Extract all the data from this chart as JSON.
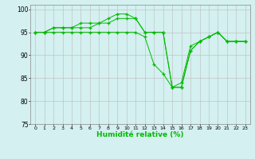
{
  "title": "",
  "xlabel": "Humidité relative (%)",
  "ylabel": "",
  "bg_color": "#d4f0f0",
  "grid_color": "#bbbbbb",
  "line_color": "#00bb00",
  "xlim": [
    -0.5,
    23.5
  ],
  "ylim": [
    75,
    101
  ],
  "yticks": [
    75,
    80,
    85,
    90,
    95,
    100
  ],
  "xticks": [
    0,
    1,
    2,
    3,
    4,
    5,
    6,
    7,
    8,
    9,
    10,
    11,
    12,
    13,
    14,
    15,
    16,
    17,
    18,
    19,
    20,
    21,
    22,
    23
  ],
  "series": [
    {
      "x": [
        0,
        1,
        2,
        3,
        4,
        5,
        6,
        7,
        8,
        9,
        10,
        11,
        12,
        13,
        14,
        15,
        16,
        17,
        18,
        19,
        20,
        21,
        22,
        23
      ],
      "y": [
        95,
        95,
        96,
        96,
        96,
        96,
        96,
        97,
        97,
        98,
        98,
        98,
        95,
        95,
        95,
        83,
        83,
        91,
        93,
        94,
        95,
        93,
        93,
        93
      ]
    },
    {
      "x": [
        0,
        1,
        2,
        3,
        4,
        5,
        6,
        7,
        8,
        9,
        10,
        11,
        12,
        13,
        14,
        15,
        16,
        17,
        18,
        19,
        20,
        21,
        22,
        23
      ],
      "y": [
        95,
        95,
        96,
        96,
        96,
        97,
        97,
        97,
        98,
        99,
        99,
        98,
        95,
        95,
        95,
        83,
        83,
        91,
        93,
        94,
        95,
        93,
        93,
        93
      ]
    },
    {
      "x": [
        0,
        1,
        2,
        3,
        4,
        5,
        6,
        7,
        8,
        9,
        10,
        11,
        12,
        13,
        14,
        15,
        16,
        17,
        18,
        19,
        20,
        21,
        22,
        23
      ],
      "y": [
        95,
        95,
        95,
        95,
        95,
        95,
        95,
        95,
        95,
        95,
        95,
        95,
        94,
        88,
        86,
        83,
        84,
        92,
        93,
        94,
        95,
        93,
        93,
        93
      ]
    }
  ]
}
